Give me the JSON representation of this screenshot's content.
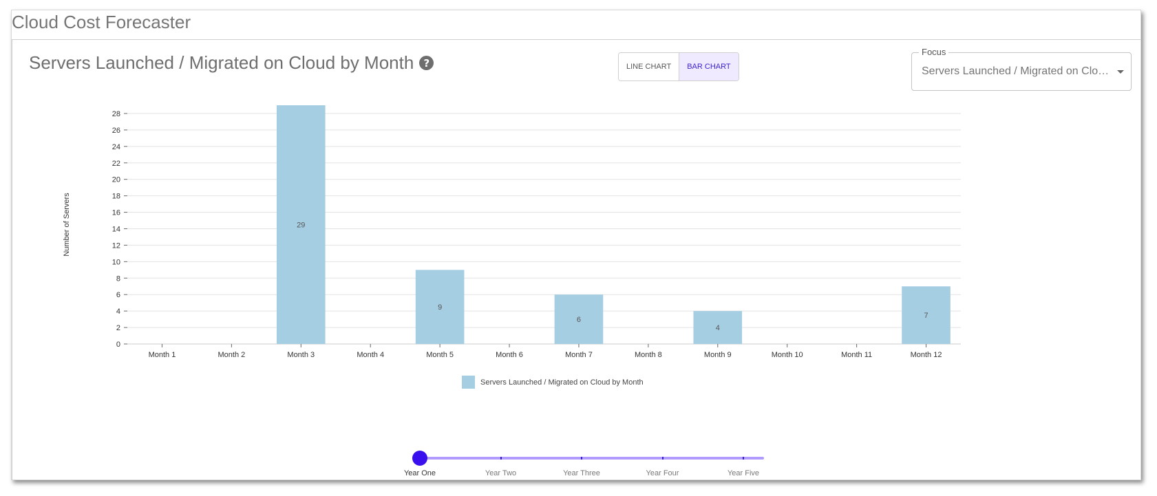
{
  "app": {
    "title": "Cloud Cost Forecaster"
  },
  "card": {
    "title": "Servers Launched / Migrated on Cloud by Month",
    "help_icon": "question-circle-icon"
  },
  "toggle": {
    "line_label": "LINE CHART",
    "bar_label": "BAR CHART",
    "active": "bar"
  },
  "focus": {
    "label": "Focus",
    "value": "Servers Launched / Migrated on Cloud by Month"
  },
  "chart_data": {
    "type": "bar",
    "categories": [
      "Month 1",
      "Month 2",
      "Month 3",
      "Month 4",
      "Month 5",
      "Month 6",
      "Month 7",
      "Month 8",
      "Month 9",
      "Month 10",
      "Month 11",
      "Month 12"
    ],
    "series": [
      {
        "name": "Servers Launched / Migrated on Cloud by Month",
        "values": [
          0,
          0,
          29,
          0,
          9,
          0,
          6,
          0,
          4,
          0,
          0,
          7
        ],
        "color": "#a6cee3"
      }
    ],
    "data_labels": [
      "",
      "",
      "29",
      "",
      "9",
      "",
      "6",
      "",
      "4",
      "",
      "",
      "7"
    ],
    "ylabel": "Number of Servers",
    "xlabel": "",
    "ylim": [
      0,
      29
    ],
    "yticks": [
      "0",
      "2",
      "4",
      "6",
      "8",
      "10",
      "12",
      "14",
      "16",
      "18",
      "20",
      "22",
      "24",
      "26",
      "28"
    ],
    "grid": true,
    "legend": "bottom-center"
  },
  "slider": {
    "marks": [
      "Year One",
      "Year Two",
      "Year Three",
      "Year Four",
      "Year Five"
    ],
    "selected_index": 0,
    "accent": "#3a0fee"
  }
}
